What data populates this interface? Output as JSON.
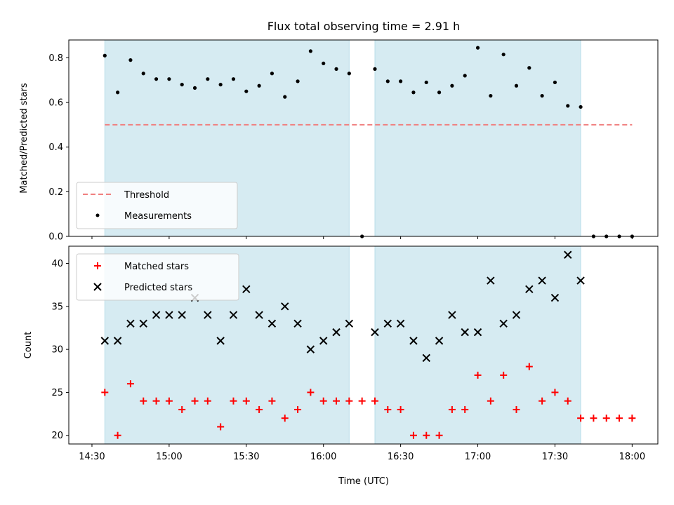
{
  "chart_data": [
    {
      "type": "scatter",
      "title": "Flux total observing time = 2.91 h",
      "ylabel": "Matched/Predicted stars",
      "ylim": [
        0,
        0.88
      ],
      "yticks": [
        "0.0",
        "0.2",
        "0.4",
        "0.6",
        "0.8"
      ],
      "legend_position": "lower-left",
      "grid": false,
      "observing_windows": [
        [
          "14:35",
          "16:10"
        ],
        [
          "16:20",
          "17:40"
        ]
      ],
      "threshold": {
        "name": "Threshold",
        "value": 0.5,
        "x_range": [
          "14:35",
          "18:00"
        ],
        "color": "#f08080",
        "style": "dashed"
      },
      "series": [
        {
          "name": "Measurements",
          "color": "#000000",
          "marker": "dot",
          "x": [
            "14:35",
            "14:40",
            "14:45",
            "14:50",
            "14:55",
            "15:00",
            "15:05",
            "15:10",
            "15:15",
            "15:20",
            "15:25",
            "15:30",
            "15:35",
            "15:40",
            "15:45",
            "15:50",
            "15:55",
            "16:00",
            "16:05",
            "16:10",
            "16:15",
            "16:20",
            "16:25",
            "16:30",
            "16:35",
            "16:40",
            "16:45",
            "16:50",
            "16:55",
            "17:00",
            "17:05",
            "17:10",
            "17:15",
            "17:20",
            "17:25",
            "17:30",
            "17:35",
            "17:40",
            "17:45",
            "17:50",
            "17:55",
            "18:00"
          ],
          "y": [
            0.81,
            0.645,
            0.79,
            0.73,
            0.705,
            0.705,
            0.68,
            0.665,
            0.705,
            0.68,
            0.705,
            0.65,
            0.675,
            0.73,
            0.625,
            0.695,
            0.83,
            0.775,
            0.75,
            0.73,
            0.0,
            0.75,
            0.695,
            0.695,
            0.645,
            0.69,
            0.645,
            0.675,
            0.72,
            0.845,
            0.63,
            0.815,
            0.675,
            0.755,
            0.63,
            0.69,
            0.585,
            0.58,
            0.0,
            0.0,
            0.0,
            0.0
          ]
        }
      ]
    },
    {
      "type": "scatter",
      "xlabel": "Time (UTC)",
      "ylabel": "Count",
      "ylim": [
        19,
        42
      ],
      "yticks": [
        "20",
        "25",
        "30",
        "35",
        "40"
      ],
      "xticks": [
        "14:30",
        "15:00",
        "15:30",
        "16:00",
        "16:30",
        "17:00",
        "17:30",
        "18:00"
      ],
      "legend_position": "upper-left",
      "grid": false,
      "observing_windows": [
        [
          "14:35",
          "16:10"
        ],
        [
          "16:20",
          "17:40"
        ]
      ],
      "series": [
        {
          "name": "Matched stars",
          "color": "#ff0000",
          "marker": "plus",
          "x": [
            "14:35",
            "14:40",
            "14:45",
            "14:50",
            "14:55",
            "15:00",
            "15:05",
            "15:10",
            "15:15",
            "15:20",
            "15:25",
            "15:30",
            "15:35",
            "15:40",
            "15:45",
            "15:50",
            "15:55",
            "16:00",
            "16:05",
            "16:10",
            "16:15",
            "16:20",
            "16:25",
            "16:30",
            "16:35",
            "16:40",
            "16:45",
            "16:50",
            "16:55",
            "17:00",
            "17:05",
            "17:10",
            "17:15",
            "17:20",
            "17:25",
            "17:30",
            "17:35",
            "17:40",
            "17:45",
            "17:50",
            "17:55",
            "18:00"
          ],
          "y": [
            25,
            20,
            26,
            24,
            24,
            24,
            23,
            24,
            24,
            21,
            24,
            24,
            23,
            24,
            22,
            23,
            25,
            24,
            24,
            24,
            24,
            24,
            23,
            23,
            20,
            20,
            20,
            23,
            23,
            27,
            24,
            27,
            23,
            28,
            24,
            25,
            24,
            22,
            22,
            22,
            22,
            22
          ]
        },
        {
          "name": "Predicted stars",
          "color": "#000000",
          "marker": "x",
          "x": [
            "14:35",
            "14:40",
            "14:45",
            "14:50",
            "14:55",
            "15:00",
            "15:05",
            "15:10",
            "15:15",
            "15:20",
            "15:25",
            "15:30",
            "15:35",
            "15:40",
            "15:45",
            "15:50",
            "15:55",
            "16:00",
            "16:05",
            "16:10",
            "16:20",
            "16:25",
            "16:30",
            "16:35",
            "16:40",
            "16:45",
            "16:50",
            "16:55",
            "17:00",
            "17:05",
            "17:10",
            "17:15",
            "17:20",
            "17:25",
            "17:30",
            "17:35",
            "17:40"
          ],
          "y": [
            31,
            31,
            33,
            33,
            34,
            34,
            34,
            36,
            34,
            31,
            34,
            37,
            34,
            33,
            35,
            33,
            30,
            31,
            32,
            33,
            32,
            33,
            33,
            31,
            29,
            31,
            34,
            32,
            32,
            38,
            33,
            34,
            37,
            38,
            36,
            41,
            38
          ]
        }
      ]
    }
  ]
}
